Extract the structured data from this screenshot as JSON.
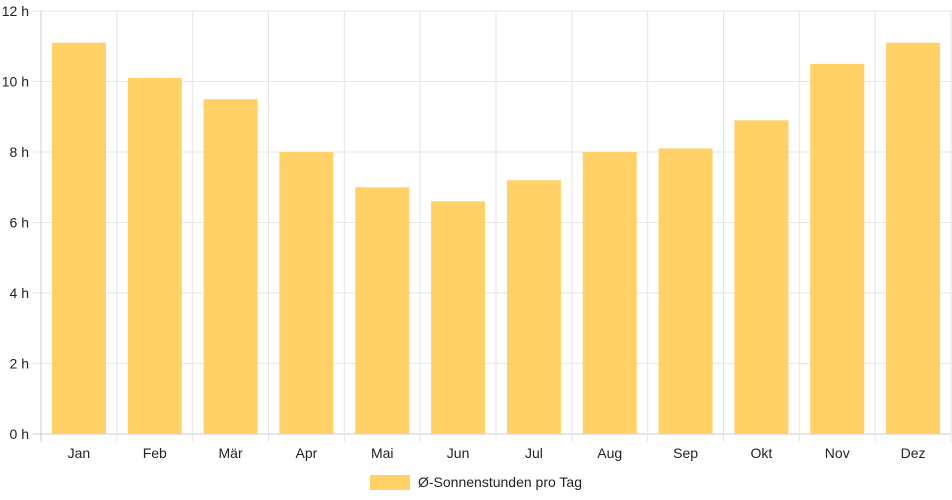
{
  "chart_data": {
    "type": "bar",
    "categories": [
      "Jan",
      "Feb",
      "Mär",
      "Apr",
      "Mai",
      "Jun",
      "Jul",
      "Aug",
      "Sep",
      "Okt",
      "Nov",
      "Dez"
    ],
    "series": [
      {
        "name": "Ø-Sonnenstunden pro Tag",
        "values": [
          11.1,
          10.1,
          9.5,
          8.0,
          7.0,
          6.6,
          7.2,
          8.0,
          8.1,
          8.9,
          10.5,
          11.1
        ]
      }
    ],
    "ylim": [
      0,
      12
    ],
    "yticks": [
      0,
      2,
      4,
      6,
      8,
      10,
      12
    ],
    "ytick_unit": " h",
    "grid": true,
    "legend_position": "bottom-center",
    "colors": {
      "bar": "#ffd166",
      "grid": "#e6e6e6",
      "axis": "#cccccc"
    }
  }
}
